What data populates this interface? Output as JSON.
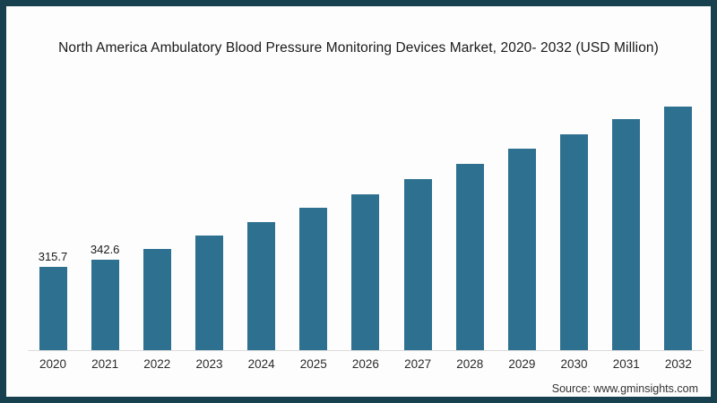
{
  "chart": {
    "title": "North America Ambulatory Blood Pressure Monitoring Devices Market, 2020- 2032 (USD Million)",
    "source": "Source: www.gminsights.com",
    "colors": {
      "bar": "#2e7090",
      "frame_border": "#17414f",
      "axis_line": "#dcdcdc",
      "background": "#fdfdfd"
    }
  },
  "chart_data": {
    "type": "bar",
    "title": "North America Ambulatory Blood Pressure Monitoring Devices Market, 2020- 2032 (USD Million)",
    "categories": [
      "2020",
      "2021",
      "2022",
      "2023",
      "2024",
      "2025",
      "2026",
      "2027",
      "2028",
      "2029",
      "2030",
      "2031",
      "2032"
    ],
    "values": [
      315.7,
      342.6,
      381,
      433,
      484,
      537,
      589,
      644,
      702,
      759,
      814,
      870,
      918
    ],
    "data_labels": [
      "315.7",
      "342.6",
      "",
      "",
      "",
      "",
      "",
      "",
      "",
      "",
      "",
      "",
      ""
    ],
    "xlabel": "",
    "ylabel": "",
    "ylim": [
      0,
      1000
    ],
    "grid": false,
    "legend": false,
    "bar_color": "#2e7090"
  }
}
